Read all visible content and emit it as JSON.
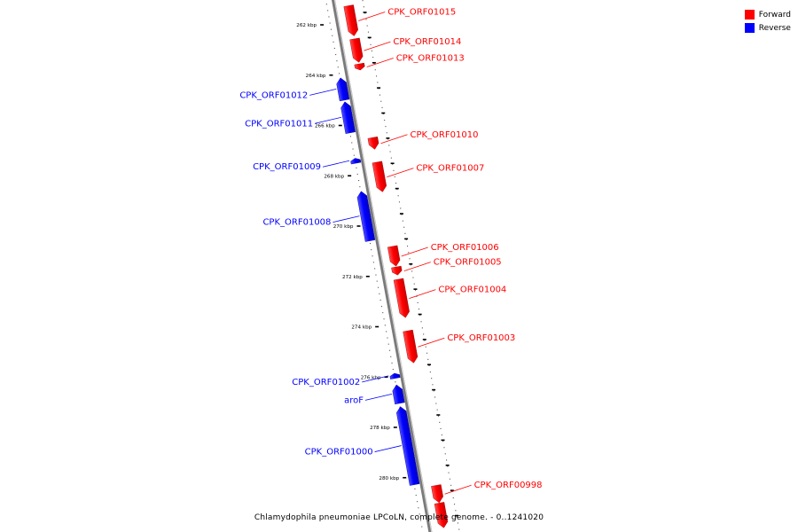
{
  "caption": "Chlamydophila pneumoniae LPCoLN, complete genome. - 0..1241020",
  "legend": {
    "forward": {
      "label": "Forward",
      "color": "#ff0000"
    },
    "reverse": {
      "label": "Reverse",
      "color": "#0000ff"
    }
  },
  "colors": {
    "forward": "#ff0000",
    "reverse": "#0000ff",
    "axis": "#888888",
    "tick": "#000000"
  },
  "axis_labels": [
    {
      "kbp": 262,
      "label": "262 kbp"
    },
    {
      "kbp": 264,
      "label": "264 kbp"
    },
    {
      "kbp": 266,
      "label": "266 kbp"
    },
    {
      "kbp": 268,
      "label": "268 kbp"
    },
    {
      "kbp": 270,
      "label": "270 kbp"
    },
    {
      "kbp": 272,
      "label": "272 kbp"
    },
    {
      "kbp": 274,
      "label": "274 kbp"
    },
    {
      "kbp": 276,
      "label": "276 kbp"
    },
    {
      "kbp": 278,
      "label": "278 kbp"
    },
    {
      "kbp": 280,
      "label": "280 kbp"
    }
  ],
  "features": [
    {
      "name": "CPK_ORF01015",
      "strand": "forward",
      "start_kbp": 261.23,
      "end_kbp": 262.45
    },
    {
      "name": "CPK_ORF01014",
      "strand": "forward",
      "start_kbp": 262.55,
      "end_kbp": 263.5
    },
    {
      "name": "CPK_ORF01013",
      "strand": "forward",
      "start_kbp": 263.55,
      "end_kbp": 263.8
    },
    {
      "name": "CPK_ORF01012",
      "strand": "reverse",
      "start_kbp": 264.1,
      "end_kbp": 265.0
    },
    {
      "name": "CPK_ORF01011",
      "strand": "reverse",
      "start_kbp": 265.05,
      "end_kbp": 266.3
    },
    {
      "name": "CPK_ORF01010",
      "strand": "forward",
      "start_kbp": 266.48,
      "end_kbp": 266.95
    },
    {
      "name": "CPK_ORF01009",
      "strand": "reverse",
      "start_kbp": 267.3,
      "end_kbp": 267.5
    },
    {
      "name": "CPK_ORF01007",
      "strand": "forward",
      "start_kbp": 267.45,
      "end_kbp": 268.65
    },
    {
      "name": "CPK_ORF01008",
      "strand": "reverse",
      "start_kbp": 268.6,
      "end_kbp": 270.6
    },
    {
      "name": "CPK_ORF01006",
      "strand": "forward",
      "start_kbp": 270.8,
      "end_kbp": 271.6
    },
    {
      "name": "CPK_ORF01005",
      "strand": "forward",
      "start_kbp": 271.62,
      "end_kbp": 271.95
    },
    {
      "name": "CPK_ORF01004",
      "strand": "forward",
      "start_kbp": 272.1,
      "end_kbp": 273.65
    },
    {
      "name": "CPK_ORF01003",
      "strand": "forward",
      "start_kbp": 274.15,
      "end_kbp": 275.45
    },
    {
      "name": "CPK_ORF01002",
      "strand": "reverse",
      "start_kbp": 275.85,
      "end_kbp": 276.05
    },
    {
      "name": "aroF",
      "strand": "reverse",
      "start_kbp": 276.3,
      "end_kbp": 277.05
    },
    {
      "name": "CPK_ORF01000",
      "strand": "reverse",
      "start_kbp": 277.15,
      "end_kbp": 280.3
    },
    {
      "name": "CPK_ORF00998",
      "strand": "forward",
      "start_kbp": 280.3,
      "end_kbp": 281.0
    },
    {
      "name": "",
      "strand": "forward",
      "start_kbp": 281.0,
      "end_kbp": 282.0
    }
  ]
}
